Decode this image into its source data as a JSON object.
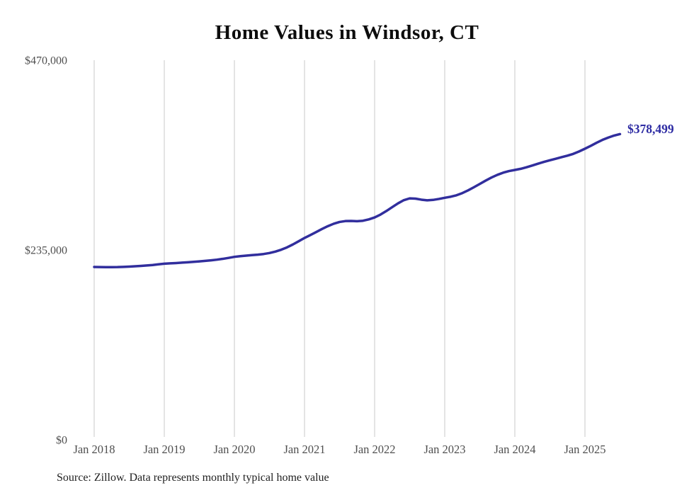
{
  "title": "Home Values in Windsor, CT",
  "end_label": "$378,499",
  "source_note": "Source: Zillow. Data represents monthly typical home value",
  "colors": {
    "line": "#312e9d",
    "end_label": "#2d2ba3",
    "grid": "#c9c9c9",
    "tick_text": "#4f4f4f",
    "title_text": "#0d0d0d",
    "source_text": "#1f1f1f",
    "background": "#ffffff"
  },
  "chart_data": {
    "type": "line",
    "title": "Home Values in Windsor, CT",
    "xlabel": "",
    "ylabel": "",
    "x_start_month": "Jan 2018",
    "x_end_month": "Jul 2025",
    "x_tick_labels": [
      "Jan 2018",
      "Jan 2019",
      "Jan 2020",
      "Jan 2021",
      "Jan 2022",
      "Jan 2023",
      "Jan 2024",
      "Jan 2025"
    ],
    "y_ticks": [
      0,
      235000,
      470000
    ],
    "y_tick_labels": [
      "$0",
      "$235,000",
      "$470,000"
    ],
    "ylim": [
      0,
      470000
    ],
    "grid": "vertical-only",
    "legend": "none",
    "end_annotation": "$378,499",
    "end_value": 378499,
    "series": [
      {
        "name": "Typical home value (monthly)",
        "monthly_values": [
          214000,
          213800,
          213700,
          213700,
          213800,
          214100,
          214400,
          214800,
          215300,
          215800,
          216400,
          217200,
          218000,
          218400,
          218800,
          219300,
          219800,
          220300,
          220900,
          221500,
          222200,
          223000,
          224000,
          225200,
          226500,
          227300,
          228000,
          228600,
          229200,
          230000,
          231200,
          233000,
          235300,
          238200,
          241800,
          245800,
          249900,
          253500,
          257200,
          261000,
          264500,
          267500,
          269700,
          270800,
          270900,
          270600,
          271200,
          272900,
          275300,
          278800,
          283200,
          288000,
          292700,
          296700,
          298900,
          298600,
          297300,
          296500,
          297000,
          298200,
          299600,
          300900,
          302700,
          305400,
          308800,
          312700,
          316800,
          320900,
          324700,
          328000,
          330700,
          332700,
          334100,
          335500,
          337400,
          339600,
          341900,
          344100,
          346100,
          348000,
          349900,
          351800,
          354000,
          357000,
          360400,
          364000,
          367800,
          371300,
          374200,
          376700,
          378499
        ]
      }
    ]
  }
}
